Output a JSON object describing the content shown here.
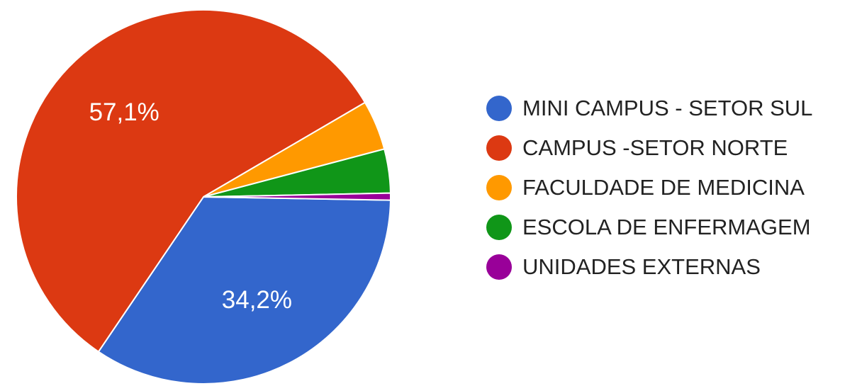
{
  "chart_data": {
    "type": "pie",
    "categories": [
      "MINI CAMPUS - SETOR SUL",
      "CAMPUS -SETOR NORTE",
      "FACULDADE DE MEDICINA",
      "ESCOLA DE ENFERMAGEM",
      "UNIDADES EXTERNAS"
    ],
    "values": [
      34.2,
      57.1,
      4.3,
      3.8,
      0.6
    ],
    "value_labels": [
      "34,2%",
      "57,1%",
      "",
      "",
      ""
    ],
    "colors": [
      "#3366cc",
      "#dc3912",
      "#ff9900",
      "#109618",
      "#990099"
    ],
    "legend_position": "right"
  }
}
